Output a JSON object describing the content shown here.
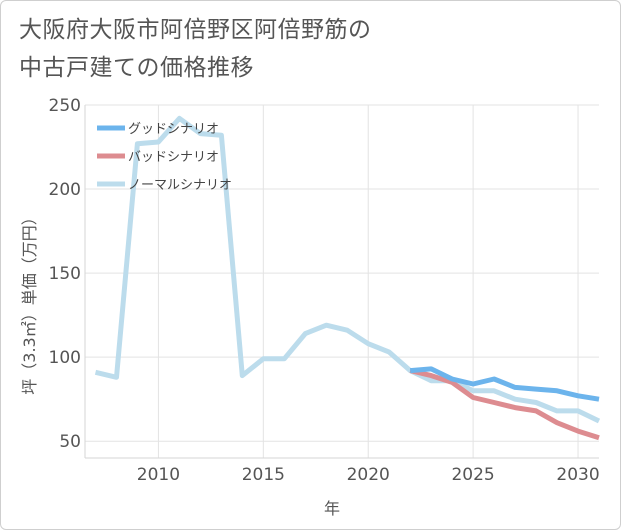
{
  "chart_data": {
    "type": "line",
    "title_lines": [
      "大阪府大阪市阿倍野区阿倍野筋の",
      "中古戸建ての価格推移"
    ],
    "xlabel": "年",
    "ylabel": "坪（3.3㎡）単価（万円）",
    "xlim": [
      2006.5,
      2031
    ],
    "ylim": [
      40,
      250
    ],
    "xticks": [
      2010,
      2015,
      2020,
      2025,
      2030
    ],
    "yticks": [
      50,
      100,
      150,
      200,
      250
    ],
    "grid": true,
    "legend_position": "top-left",
    "series": [
      {
        "name": "グッドシナリオ",
        "color": "#6cb4ec",
        "x": [
          2022,
          2023,
          2024,
          2025,
          2026,
          2027,
          2028,
          2029,
          2030,
          2031
        ],
        "values": [
          92,
          93,
          87,
          84,
          87,
          82,
          81,
          80,
          77,
          75
        ]
      },
      {
        "name": "バッドシナリオ",
        "color": "#dd8c90",
        "x": [
          2022,
          2023,
          2024,
          2025,
          2026,
          2027,
          2028,
          2029,
          2030,
          2031
        ],
        "values": [
          92,
          89,
          85,
          76,
          73,
          70,
          68,
          61,
          56,
          52
        ]
      },
      {
        "name": "ノーマルシナリオ",
        "color": "#bcdcec",
        "x": [
          2007,
          2008,
          2009,
          2010,
          2011,
          2012,
          2013,
          2014,
          2015,
          2016,
          2017,
          2018,
          2019,
          2020,
          2021,
          2022,
          2023,
          2024,
          2025,
          2026,
          2027,
          2028,
          2029,
          2030,
          2031
        ],
        "values": [
          91,
          88,
          227,
          228,
          242,
          233,
          232,
          89,
          99,
          99,
          114,
          119,
          116,
          108,
          103,
          92,
          86,
          86,
          80,
          80,
          75,
          73,
          68,
          68,
          62
        ]
      }
    ]
  }
}
